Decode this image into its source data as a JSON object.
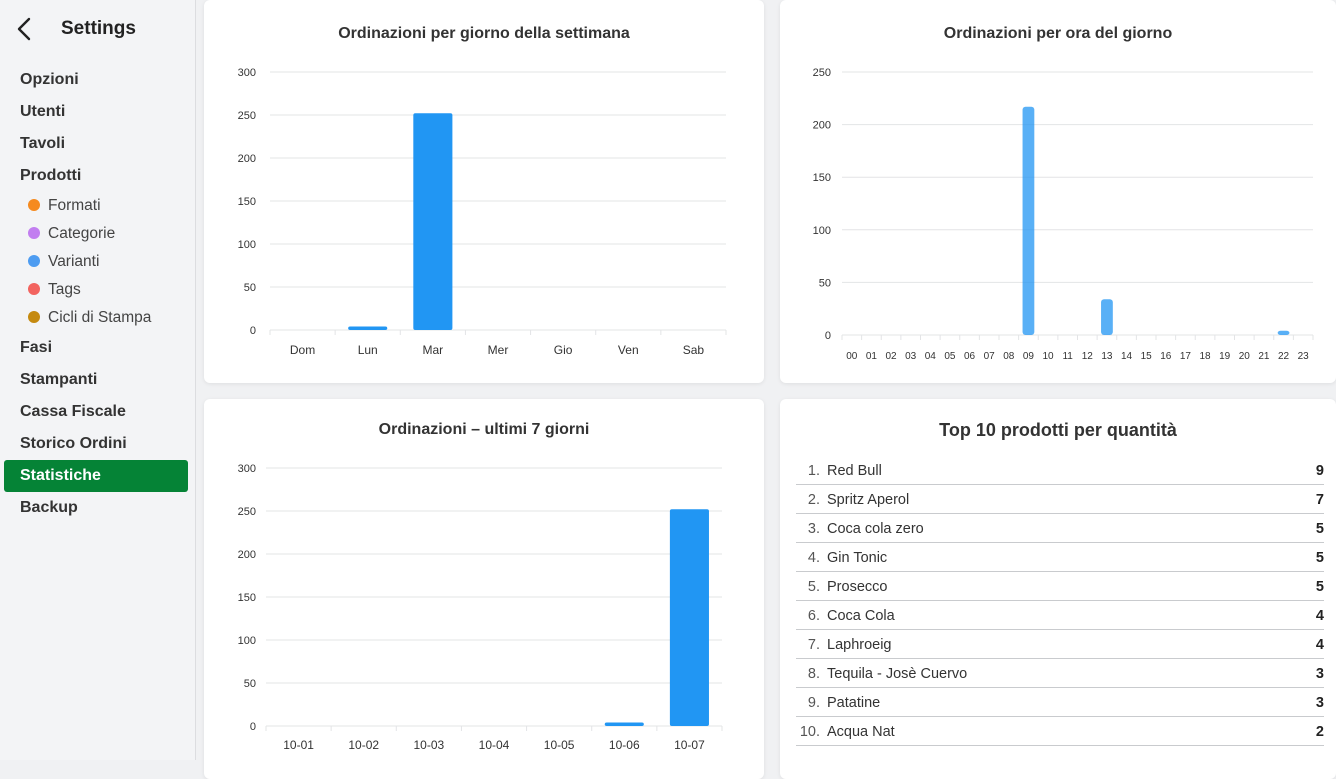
{
  "sidebar": {
    "title": "Settings",
    "items": [
      {
        "label": "Opzioni",
        "type": "main",
        "active": false
      },
      {
        "label": "Utenti",
        "type": "main",
        "active": false
      },
      {
        "label": "Tavoli",
        "type": "main",
        "active": false
      },
      {
        "label": "Prodotti",
        "type": "main",
        "active": false
      },
      {
        "label": "Formati",
        "type": "sub",
        "color": "#f58a1f"
      },
      {
        "label": "Categorie",
        "type": "sub",
        "color": "#c27ef0"
      },
      {
        "label": "Varianti",
        "type": "sub",
        "color": "#4d9cf1"
      },
      {
        "label": "Tags",
        "type": "sub",
        "color": "#f2635f"
      },
      {
        "label": "Cicli di Stampa",
        "type": "sub",
        "color": "#c58a10"
      },
      {
        "label": "Fasi",
        "type": "main",
        "active": false
      },
      {
        "label": "Stampanti",
        "type": "main",
        "active": false
      },
      {
        "label": "Cassa Fiscale",
        "type": "main",
        "active": false
      },
      {
        "label": "Storico Ordini",
        "type": "main",
        "active": false
      },
      {
        "label": "Statistiche",
        "type": "main",
        "active": true
      },
      {
        "label": "Backup",
        "type": "main",
        "active": false
      }
    ]
  },
  "colors": {
    "bar": "#2196f3",
    "active_nav": "#058336"
  },
  "chart_data": [
    {
      "type": "bar",
      "title": "Ordinazioni per giorno della settimana",
      "categories": [
        "Dom",
        "Lun",
        "Mar",
        "Mer",
        "Gio",
        "Ven",
        "Sab"
      ],
      "values": [
        0,
        4,
        252,
        0,
        0,
        0,
        0
      ],
      "ylim": [
        0,
        300
      ],
      "yticks": [
        0,
        50,
        100,
        150,
        200,
        250,
        300
      ],
      "grid": true
    },
    {
      "type": "bar",
      "title": "Ordinazioni per ora del giorno",
      "categories": [
        "00",
        "01",
        "02",
        "03",
        "04",
        "05",
        "06",
        "07",
        "08",
        "09",
        "10",
        "11",
        "12",
        "13",
        "14",
        "15",
        "16",
        "17",
        "18",
        "19",
        "20",
        "21",
        "22",
        "23"
      ],
      "values": [
        0,
        0,
        0,
        0,
        0,
        0,
        0,
        0,
        0,
        217,
        0,
        0,
        0,
        34,
        0,
        0,
        0,
        0,
        0,
        0,
        0,
        0,
        4,
        0
      ],
      "ylim": [
        0,
        250
      ],
      "yticks": [
        0,
        50,
        100,
        150,
        200,
        250
      ],
      "grid": true
    },
    {
      "type": "bar",
      "title": "Ordinazioni – ultimi 7 giorni",
      "categories": [
        "10-01",
        "10-02",
        "10-03",
        "10-04",
        "10-05",
        "10-06",
        "10-07"
      ],
      "values": [
        0,
        0,
        0,
        0,
        0,
        4,
        252
      ],
      "ylim": [
        0,
        300
      ],
      "yticks": [
        0,
        50,
        100,
        150,
        200,
        250,
        300
      ],
      "grid": true
    }
  ],
  "top_products": {
    "title": "Top 10 prodotti per quantità",
    "items": [
      {
        "rank": "1.",
        "name": "Red Bull",
        "qty": "9"
      },
      {
        "rank": "2.",
        "name": "Spritz Aperol",
        "qty": "7"
      },
      {
        "rank": "3.",
        "name": "Coca cola zero",
        "qty": "5"
      },
      {
        "rank": "4.",
        "name": "Gin Tonic",
        "qty": "5"
      },
      {
        "rank": "5.",
        "name": "Prosecco",
        "qty": "5"
      },
      {
        "rank": "6.",
        "name": "Coca Cola",
        "qty": "4"
      },
      {
        "rank": "7.",
        "name": "Laphroeig",
        "qty": "4"
      },
      {
        "rank": "8.",
        "name": "Tequila - Josè Cuervo",
        "qty": "3"
      },
      {
        "rank": "9.",
        "name": "Patatine",
        "qty": "3"
      },
      {
        "rank": "10.",
        "name": "Acqua Nat",
        "qty": "2"
      }
    ]
  }
}
